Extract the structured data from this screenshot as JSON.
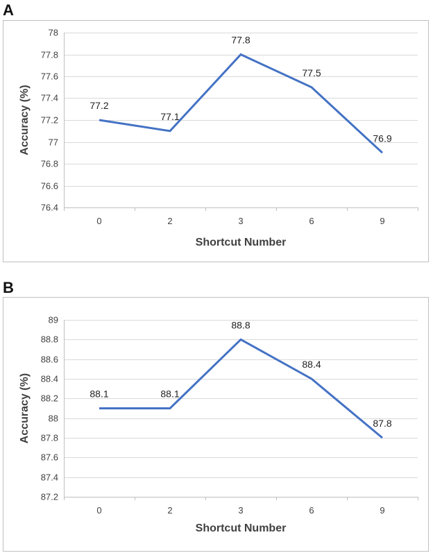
{
  "chart_data": [
    {
      "panel": "A",
      "type": "line",
      "categories": [
        "0",
        "2",
        "3",
        "6",
        "9"
      ],
      "series": [
        {
          "name": "Accuracy",
          "values": [
            77.2,
            77.1,
            77.8,
            77.5,
            76.9
          ]
        }
      ],
      "data_labels": [
        "77.2",
        "77.1",
        "77.8",
        "77.5",
        "76.9"
      ],
      "xlabel": "Shortcut Number",
      "ylabel": "Accuracy (%)",
      "ylim": [
        76.4,
        78
      ],
      "yticks": [
        "76.4",
        "76.6",
        "76.8",
        "77",
        "77.2",
        "77.4",
        "77.6",
        "77.8",
        "78"
      ],
      "grid": true,
      "color": "#4472c4"
    },
    {
      "panel": "B",
      "type": "line",
      "categories": [
        "0",
        "2",
        "3",
        "6",
        "9"
      ],
      "series": [
        {
          "name": "Accuracy",
          "values": [
            88.1,
            88.1,
            88.8,
            88.4,
            87.8
          ]
        }
      ],
      "data_labels": [
        "88.1",
        "88.1",
        "88.8",
        "88.4",
        "87.8"
      ],
      "xlabel": "Shortcut Number",
      "ylabel": "Accuracy (%)",
      "ylim": [
        87.2,
        89
      ],
      "yticks": [
        "87.2",
        "87.4",
        "87.6",
        "87.8",
        "88",
        "88.2",
        "88.4",
        "88.6",
        "88.8",
        "89"
      ],
      "grid": true,
      "color": "#4472c4"
    }
  ]
}
